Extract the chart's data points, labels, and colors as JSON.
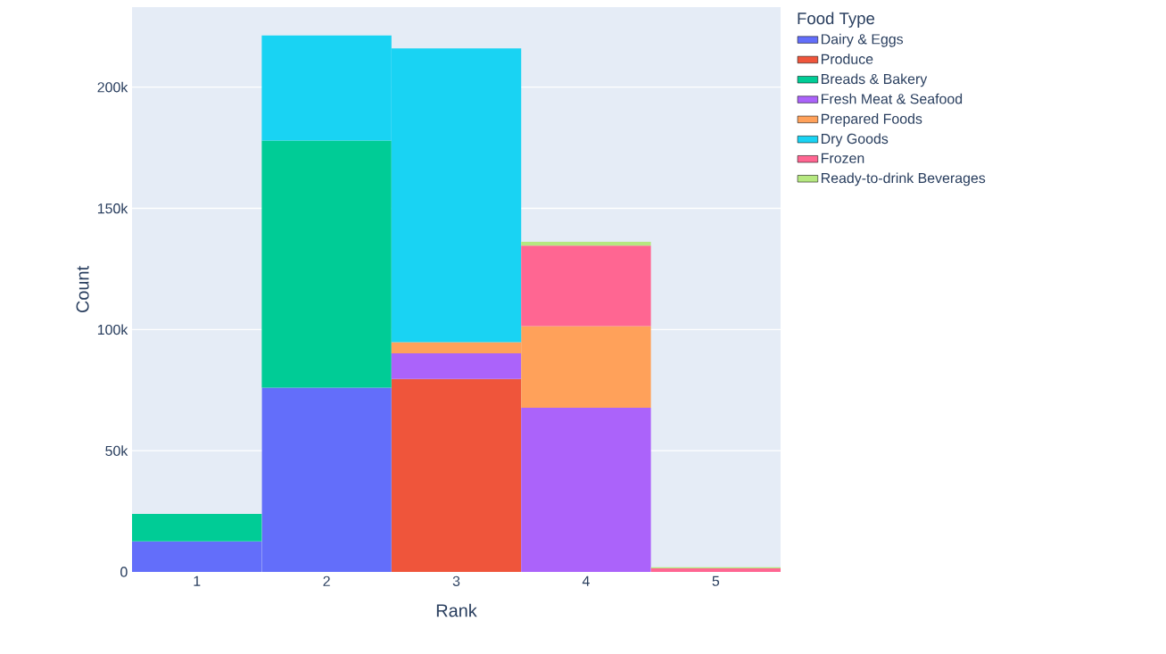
{
  "chart_data": {
    "type": "bar",
    "stacked": true,
    "xlabel": "Rank",
    "ylabel": "Count",
    "legend_title": "Food Type",
    "legend": "right",
    "grid": "y",
    "categories": [
      "1",
      "2",
      "3",
      "4",
      "5"
    ],
    "ylim": [
      0,
      233000
    ],
    "yticks": [
      0,
      {
        "value": 50000,
        "label": "50k"
      },
      {
        "value": 100000,
        "label": "100k"
      },
      {
        "value": 150000,
        "label": "150k"
      },
      {
        "value": 200000,
        "label": "200k"
      }
    ],
    "series": [
      {
        "name": "Dairy & Eggs",
        "color": "#636efa",
        "values": [
          12600,
          76000,
          null,
          null,
          null
        ]
      },
      {
        "name": "Produce",
        "color": "#ef553b",
        "values": [
          null,
          null,
          79600,
          null,
          null
        ]
      },
      {
        "name": "Breads & Bakery",
        "color": "#00cc96",
        "values": [
          11300,
          102000,
          null,
          null,
          null
        ]
      },
      {
        "name": "Fresh Meat & Seafood",
        "color": "#ab63fa",
        "values": [
          null,
          null,
          10600,
          67700,
          null
        ]
      },
      {
        "name": "Prepared Foods",
        "color": "#ffa15a",
        "values": [
          null,
          null,
          4600,
          33700,
          null
        ]
      },
      {
        "name": "Dry Goods",
        "color": "#19d3f3",
        "values": [
          null,
          43300,
          121200,
          null,
          null
        ]
      },
      {
        "name": "Frozen",
        "color": "#ff6692",
        "values": [
          null,
          null,
          null,
          33200,
          1500
        ]
      },
      {
        "name": "Ready-to-drink Beverages",
        "color": "#b6e880",
        "values": [
          null,
          null,
          null,
          1600,
          400
        ]
      }
    ]
  }
}
